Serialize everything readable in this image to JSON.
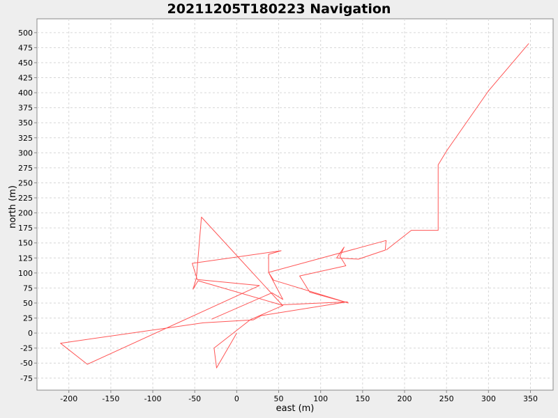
{
  "chart_data": {
    "type": "line",
    "title": "20211205T180223 Navigation",
    "xlabel": "east (m)",
    "ylabel": "north (m)",
    "xlim": [
      -238,
      377
    ],
    "ylim": [
      -95,
      523
    ],
    "xticks": [
      -200,
      -150,
      -100,
      -50,
      0,
      50,
      100,
      150,
      200,
      250,
      300,
      350
    ],
    "yticks": [
      -75,
      -50,
      -25,
      0,
      25,
      50,
      75,
      100,
      125,
      150,
      175,
      200,
      225,
      250,
      275,
      300,
      325,
      350,
      375,
      400,
      425,
      450,
      475,
      500
    ],
    "grid": true,
    "series": [
      {
        "color": "#ff5555",
        "x": [
          0,
          -24,
          -27,
          16,
          55,
          -46,
          -52,
          -48,
          -42,
          54,
          132,
          29,
          20,
          -40,
          -210,
          -178,
          27,
          -47,
          -53,
          53,
          38,
          38,
          178,
          177,
          145,
          119,
          128,
          123,
          130,
          75,
          87,
          133,
          44,
          38,
          55,
          42,
          -30
        ],
        "y": [
          0,
          -58,
          -25,
          22,
          46,
          87,
          73,
          92,
          193,
          47,
          52,
          29,
          22,
          17,
          -17,
          -52,
          79,
          89,
          116,
          137,
          131,
          101,
          154,
          138,
          123,
          125,
          143,
          128,
          112,
          95,
          68,
          50,
          88,
          101,
          56,
          67,
          23
        ]
      },
      {
        "color": "#ff5555",
        "x": [
          178,
          208,
          240,
          240,
          251,
          300,
          348
        ],
        "y": [
          138,
          171,
          171,
          280,
          305,
          403,
          482
        ]
      }
    ]
  }
}
